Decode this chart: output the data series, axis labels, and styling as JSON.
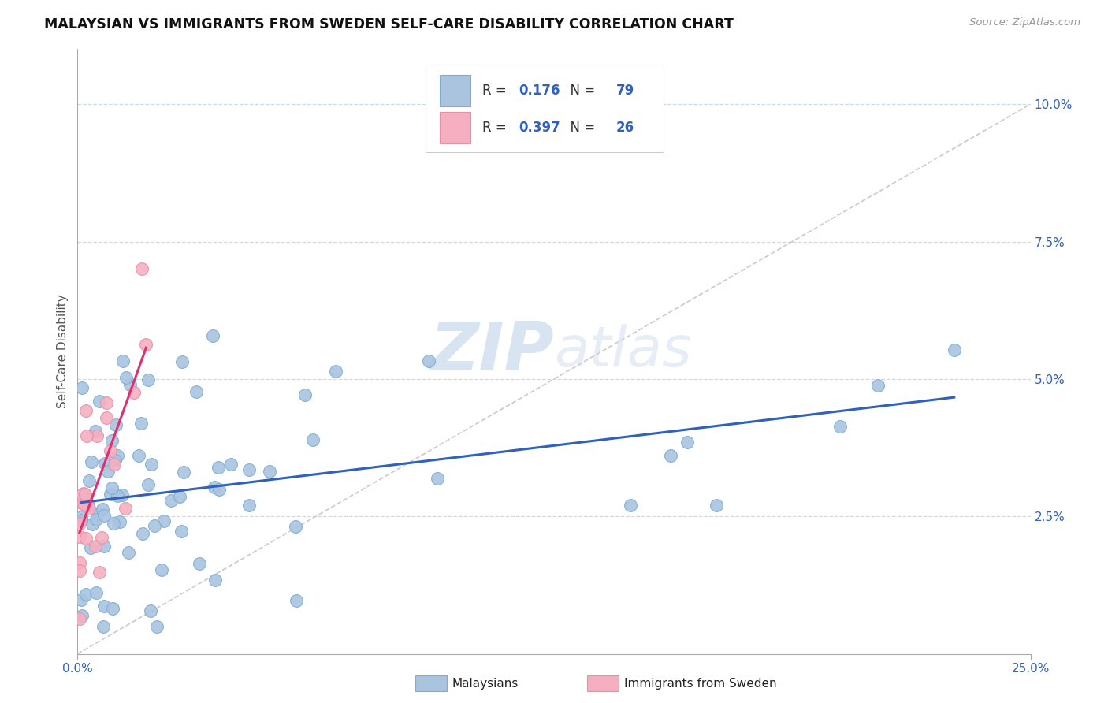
{
  "title": "MALAYSIAN VS IMMIGRANTS FROM SWEDEN SELF-CARE DISABILITY CORRELATION CHART",
  "source_text": "Source: ZipAtlas.com",
  "ylabel": "Self-Care Disability",
  "xlim": [
    0.0,
    0.25
  ],
  "ylim": [
    0.0,
    0.11
  ],
  "yticks_right": [
    0.025,
    0.05,
    0.075,
    0.1
  ],
  "ytick_labels_right": [
    "2.5%",
    "5.0%",
    "7.5%",
    "10.0%"
  ],
  "R_blue": "0.176",
  "N_blue": "79",
  "R_pink": "0.397",
  "N_pink": "26",
  "blue_color": "#aac4e0",
  "pink_color": "#f5afc0",
  "blue_edge": "#7aafd4",
  "pink_edge": "#e890a8",
  "trend_blue": "#3060c0",
  "trend_pink": "#e03070",
  "diagonal_color": "#d0c8c8",
  "background_color": "#ffffff",
  "grid_color": "#c8dce8",
  "legend_edge": "#cccccc",
  "text_color_dark": "#222222",
  "text_color_blue": "#3060c0",
  "source_color": "#999999"
}
